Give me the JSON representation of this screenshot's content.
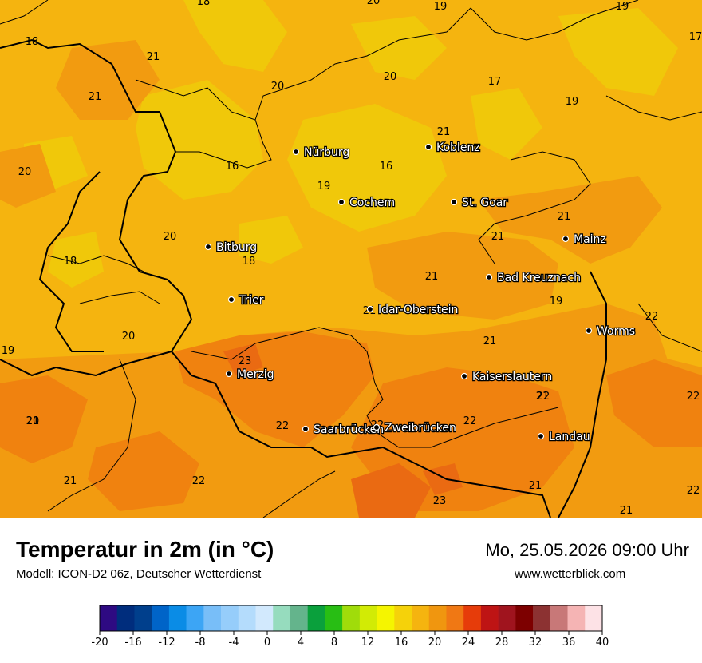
{
  "map": {
    "cities": [
      {
        "name": "Nürburg"
      },
      {
        "name": "Koblenz"
      },
      {
        "name": "Cochem"
      },
      {
        "name": "St. Goar"
      },
      {
        "name": "Bitburg"
      },
      {
        "name": "Mainz"
      },
      {
        "name": "Bad Kreuznach"
      },
      {
        "name": "Trier"
      },
      {
        "name": "Idar-Oberstein"
      },
      {
        "name": "Worms"
      },
      {
        "name": "Merzig"
      },
      {
        "name": "Kaiserslautern"
      },
      {
        "name": "Saarbrücken"
      },
      {
        "name": "Zweibrücken"
      },
      {
        "name": "Landau"
      }
    ],
    "values": [
      "18",
      "20",
      "19",
      "19",
      "17",
      "18",
      "21",
      "20",
      "17",
      "20",
      "21",
      "19",
      "21",
      "20",
      "16",
      "16",
      "19",
      "21",
      "21",
      "21",
      "18",
      "18",
      "20",
      "21",
      "19",
      "19",
      "20",
      "22",
      "23",
      "21",
      "21",
      "22",
      "22",
      "22",
      "22",
      "22",
      "21",
      "21",
      "22",
      "23",
      "21",
      "22",
      "20",
      "21"
    ],
    "colors": {
      "t16": "#f0c80a",
      "t18": "#f5b40f",
      "t20": "#f29b10",
      "t22": "#f0820f",
      "t24": "#ea6a12"
    }
  },
  "header": {
    "title": "Temperatur in 2m (in °C)",
    "subtitle": "Modell: ICON-D2 06z, Deutscher Wetterdienst",
    "datetime": "Mo, 25.05.2026 09:00 Uhr",
    "website": "www.wetterblick.com"
  },
  "legend": {
    "ticks": [
      "-20",
      "-16",
      "-12",
      "-8",
      "-4",
      "0",
      "4",
      "8",
      "12",
      "16",
      "20",
      "24",
      "28",
      "32",
      "36",
      "40"
    ],
    "colors": [
      "#2e0a82",
      "#002d7d",
      "#003f8c",
      "#0064c8",
      "#0a8ce6",
      "#3ca5f5",
      "#78bef8",
      "#96cdfa",
      "#b4dcfc",
      "#d2e9fd",
      "#96dcbe",
      "#64b48c",
      "#0aa03c",
      "#28be14",
      "#a0dc0a",
      "#d2eb05",
      "#f5f500",
      "#f5d20a",
      "#f5b40f",
      "#f0960f",
      "#f07814",
      "#e63c0a",
      "#be1414",
      "#a0141e",
      "#7d0000",
      "#8c3232",
      "#c87878",
      "#f5b4b4",
      "#fde2e6"
    ]
  }
}
